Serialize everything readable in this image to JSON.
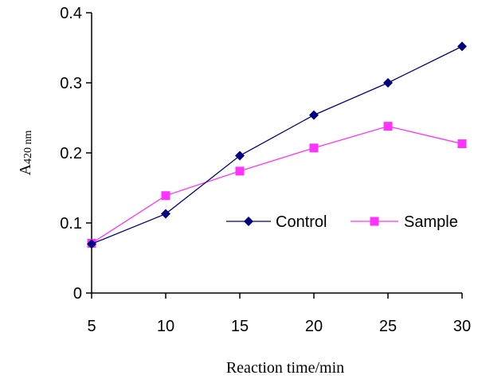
{
  "chart_data": {
    "type": "line",
    "xlabel": "Reaction time/min",
    "ylabel_main": "A",
    "ylabel_sub": "420 nm",
    "x": [
      5,
      10,
      15,
      20,
      25,
      30
    ],
    "xticks": [
      "5",
      "10",
      "15",
      "20",
      "25",
      "30"
    ],
    "yticks": [
      "0",
      "0.1",
      "0.2",
      "0.3",
      "0.4"
    ],
    "ytick_values": [
      0,
      0.1,
      0.2,
      0.3,
      0.4
    ],
    "xlim": [
      5,
      30
    ],
    "ylim": [
      0,
      0.4
    ],
    "grid": false,
    "legend_position": "center-right",
    "series": [
      {
        "name": "Control",
        "values": [
          0.07,
          0.113,
          0.196,
          0.254,
          0.3,
          0.352
        ],
        "color": "#000080",
        "marker": "diamond"
      },
      {
        "name": "Sample",
        "values": [
          0.071,
          0.139,
          0.174,
          0.207,
          0.238,
          0.213
        ],
        "color": "#ff33ff",
        "marker": "square"
      }
    ]
  }
}
